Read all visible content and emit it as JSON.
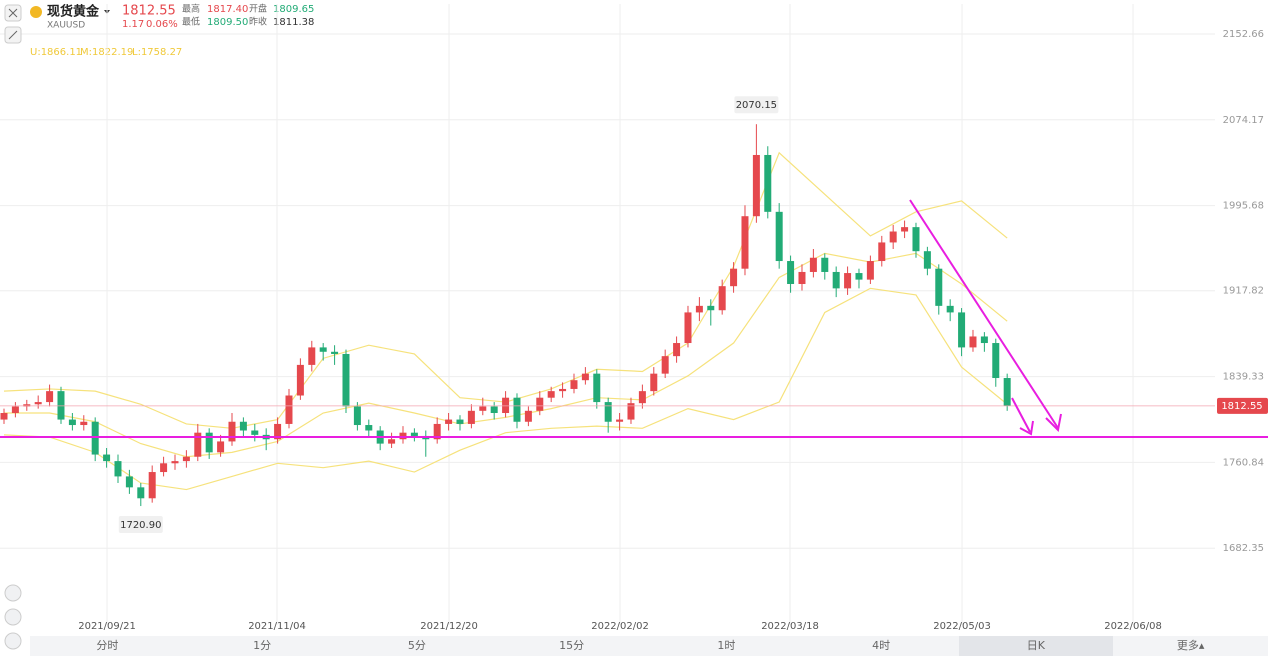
{
  "header": {
    "name": "现货黄金",
    "symbol": "XAUUSD",
    "price": "1812.55",
    "change": "1.17",
    "change_pct": "0.06%",
    "high_label": "最高",
    "high": "1817.40",
    "open_label": "开盘",
    "open": "1809.65",
    "low_label": "最低",
    "low": "1809.50",
    "prev_label": "昨收",
    "prev": "1811.38"
  },
  "tabs": [
    "分时",
    "1分",
    "5分",
    "15分",
    "1时",
    "4时",
    "日K",
    "更多▴"
  ],
  "chart_data": {
    "type": "candlestick",
    "up_color": "#e5484d",
    "down_color": "#22ab76",
    "band_color": "#f6e27c",
    "boll_labels": [
      "U:1866.11",
      "M:1822.19",
      "L:1758.27"
    ],
    "price_tag": "1812.55",
    "max_label": "2070.15",
    "min_label": "1720.90",
    "ylim": [
      1612.1,
      2161.8
    ],
    "yticks": [
      1682.35,
      1760.84,
      1839.33,
      1917.82,
      1995.68,
      2074.17,
      2152.66
    ],
    "xlim": [
      -0.35,
      106.23
    ],
    "xticks": [
      {
        "value": 9.04,
        "label": "2021/09/21"
      },
      {
        "value": 23.95,
        "label": "2021/11/04"
      },
      {
        "value": 39.04,
        "label": "2021/12/20"
      },
      {
        "value": 54.04,
        "label": "2022/02/02"
      },
      {
        "value": 68.95,
        "label": "2022/03/18"
      },
      {
        "value": 84.04,
        "label": "2022/05/03"
      },
      {
        "value": 99.04,
        "label": "2022/06/08"
      }
    ],
    "candles": [
      [
        1800,
        1810,
        1796,
        1806
      ],
      [
        1806,
        1816,
        1802,
        1812
      ],
      [
        1812,
        1818,
        1808,
        1814
      ],
      [
        1814,
        1822,
        1810,
        1816
      ],
      [
        1816,
        1832,
        1812,
        1826
      ],
      [
        1826,
        1830,
        1796,
        1800
      ],
      [
        1800,
        1806,
        1790,
        1795
      ],
      [
        1795,
        1804,
        1790,
        1798
      ],
      [
        1798,
        1802,
        1762,
        1768
      ],
      [
        1768,
        1774,
        1756,
        1762
      ],
      [
        1762,
        1768,
        1742,
        1748
      ],
      [
        1748,
        1754,
        1732,
        1738
      ],
      [
        1738,
        1742,
        1720.9,
        1728
      ],
      [
        1728,
        1758,
        1724,
        1752
      ],
      [
        1752,
        1766,
        1748,
        1760
      ],
      [
        1760,
        1768,
        1754,
        1762
      ],
      [
        1762,
        1772,
        1756,
        1766
      ],
      [
        1766,
        1796,
        1762,
        1788
      ],
      [
        1788,
        1792,
        1764,
        1770
      ],
      [
        1770,
        1786,
        1766,
        1780
      ],
      [
        1780,
        1806,
        1776,
        1798
      ],
      [
        1798,
        1802,
        1784,
        1790
      ],
      [
        1790,
        1796,
        1780,
        1786
      ],
      [
        1786,
        1792,
        1772,
        1782
      ],
      [
        1782,
        1802,
        1778,
        1796
      ],
      [
        1796,
        1828,
        1792,
        1822
      ],
      [
        1822,
        1856,
        1818,
        1850
      ],
      [
        1850,
        1872,
        1844,
        1866
      ],
      [
        1866,
        1870,
        1854,
        1862
      ],
      [
        1862,
        1868,
        1850,
        1860
      ],
      [
        1860,
        1864,
        1806,
        1812
      ],
      [
        1812,
        1816,
        1790,
        1795
      ],
      [
        1795,
        1800,
        1784,
        1790
      ],
      [
        1790,
        1794,
        1772,
        1778
      ],
      [
        1778,
        1788,
        1774,
        1782
      ],
      [
        1782,
        1794,
        1778,
        1788
      ],
      [
        1788,
        1792,
        1780,
        1785
      ],
      [
        1785,
        1790,
        1766,
        1782
      ],
      [
        1782,
        1802,
        1778,
        1796
      ],
      [
        1796,
        1806,
        1790,
        1800
      ],
      [
        1800,
        1804,
        1790,
        1796
      ],
      [
        1796,
        1814,
        1792,
        1808
      ],
      [
        1808,
        1820,
        1804,
        1812
      ],
      [
        1812,
        1816,
        1800,
        1806
      ],
      [
        1806,
        1826,
        1802,
        1820
      ],
      [
        1820,
        1824,
        1792,
        1798
      ],
      [
        1798,
        1812,
        1794,
        1808
      ],
      [
        1808,
        1826,
        1804,
        1820
      ],
      [
        1820,
        1830,
        1816,
        1826
      ],
      [
        1826,
        1834,
        1820,
        1828
      ],
      [
        1828,
        1842,
        1824,
        1836
      ],
      [
        1836,
        1848,
        1832,
        1842
      ],
      [
        1842,
        1846,
        1810,
        1816
      ],
      [
        1816,
        1820,
        1788,
        1798
      ],
      [
        1798,
        1806,
        1790,
        1800
      ],
      [
        1800,
        1820,
        1796,
        1815
      ],
      [
        1815,
        1832,
        1810,
        1826
      ],
      [
        1826,
        1848,
        1822,
        1842
      ],
      [
        1842,
        1864,
        1838,
        1858
      ],
      [
        1858,
        1876,
        1852,
        1870
      ],
      [
        1870,
        1904,
        1866,
        1898
      ],
      [
        1898,
        1912,
        1890,
        1904
      ],
      [
        1904,
        1910,
        1886,
        1900
      ],
      [
        1900,
        1928,
        1896,
        1922
      ],
      [
        1922,
        1944,
        1916,
        1938
      ],
      [
        1938,
        1996,
        1932,
        1986
      ],
      [
        1986,
        2070.15,
        1980,
        2042
      ],
      [
        2042,
        2050,
        1984,
        1990
      ],
      [
        1990,
        1998,
        1938,
        1945
      ],
      [
        1945,
        1950,
        1916,
        1924
      ],
      [
        1924,
        1942,
        1918,
        1935
      ],
      [
        1935,
        1956,
        1930,
        1948
      ],
      [
        1948,
        1952,
        1928,
        1935
      ],
      [
        1935,
        1940,
        1912,
        1920
      ],
      [
        1920,
        1940,
        1914,
        1934
      ],
      [
        1934,
        1938,
        1920,
        1928
      ],
      [
        1928,
        1950,
        1924,
        1945
      ],
      [
        1945,
        1968,
        1940,
        1962
      ],
      [
        1962,
        1978,
        1956,
        1972
      ],
      [
        1972,
        1982,
        1966,
        1976
      ],
      [
        1976,
        1980,
        1948,
        1954
      ],
      [
        1954,
        1958,
        1932,
        1938
      ],
      [
        1938,
        1942,
        1896,
        1904
      ],
      [
        1904,
        1910,
        1890,
        1898
      ],
      [
        1898,
        1902,
        1858,
        1866
      ],
      [
        1866,
        1882,
        1862,
        1876
      ],
      [
        1876,
        1880,
        1862,
        1870
      ],
      [
        1870,
        1874,
        1830,
        1838
      ],
      [
        1838,
        1842,
        1808,
        1812.55
      ]
    ],
    "bands": {
      "x": [
        0,
        4,
        8,
        12,
        16,
        20,
        24,
        28,
        32,
        36,
        40,
        44,
        48,
        52,
        56,
        60,
        64,
        68,
        72,
        76,
        80,
        84,
        88
      ],
      "upper": [
        1826,
        1828,
        1826,
        1814,
        1796,
        1792,
        1800,
        1856,
        1868,
        1860,
        1820,
        1816,
        1828,
        1846,
        1844,
        1870,
        1940,
        2044,
        2006,
        1968,
        1990,
        2000,
        1966
      ],
      "middle": [
        1806,
        1806,
        1798,
        1778,
        1766,
        1770,
        1780,
        1806,
        1815,
        1806,
        1796,
        1802,
        1810,
        1820,
        1818,
        1840,
        1870,
        1930,
        1952,
        1944,
        1952,
        1924,
        1890
      ],
      "lower": [
        1786,
        1784,
        1770,
        1742,
        1736,
        1748,
        1760,
        1756,
        1762,
        1752,
        1772,
        1788,
        1792,
        1794,
        1792,
        1810,
        1800,
        1816,
        1898,
        1920,
        1914,
        1848,
        1814
      ]
    }
  }
}
